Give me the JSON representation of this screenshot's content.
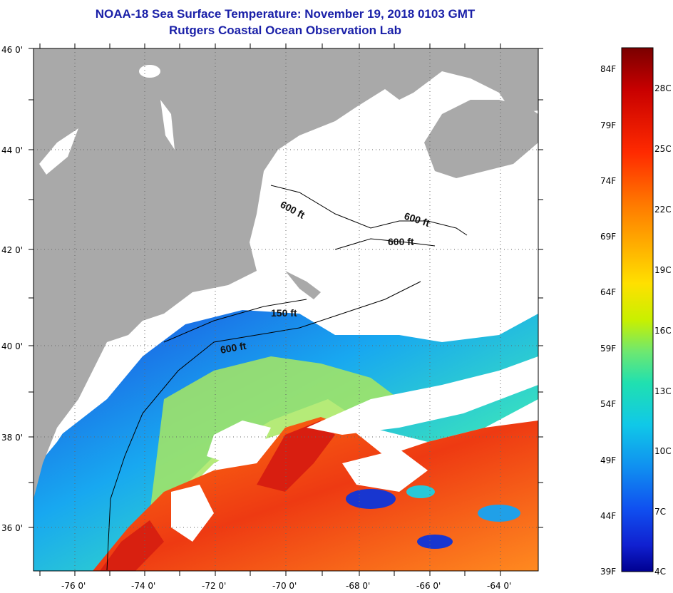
{
  "header": {
    "title": "NOAA-18 Sea Surface Temperature:  November 19, 2018 0103 GMT",
    "subtitle": "Rutgers Coastal Ocean Observation Lab"
  },
  "map": {
    "lat_labels": [
      "46 0'",
      "44 0'",
      "42 0'",
      "40 0'",
      "38 0'",
      "36 0'"
    ],
    "lon_labels": [
      "-76 0'",
      "-74 0'",
      "-72 0'",
      "-70 0'",
      "-68 0'",
      "-66 0'",
      "-64 0'"
    ],
    "contour_labels": [
      "600 ft",
      "600 ft",
      "600 ft",
      "150 ft",
      "600 ft"
    ],
    "colors": {
      "land": "#a9a9a9",
      "cloud": "#ffffff",
      "warm": "#e8351a",
      "cool": "#1f56e0"
    }
  },
  "colorbar": {
    "fahrenheit_labels": [
      "84F",
      "79F",
      "74F",
      "69F",
      "64F",
      "59F",
      "54F",
      "49F",
      "44F",
      "39F"
    ],
    "celsius_labels": [
      "28C",
      "25C",
      "22C",
      "19C",
      "16C",
      "13C",
      "10C",
      "7C",
      "4C"
    ],
    "gradient": [
      "#7a0000",
      "#c80000",
      "#ff2a00",
      "#ff7a00",
      "#ffb000",
      "#ffe000",
      "#c8f000",
      "#6ee870",
      "#20e0b0",
      "#10c8e8",
      "#1090f0",
      "#1050f0",
      "#1020d0",
      "#000090"
    ]
  }
}
